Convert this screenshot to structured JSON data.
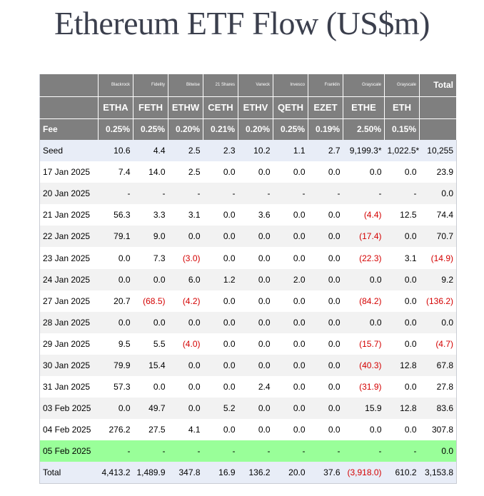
{
  "title": "Ethereum ETF Flow (US$m)",
  "issuers": [
    "Blackrock",
    "Fidelity",
    "Bitwise",
    "21 Shares",
    "Vaneck",
    "Invesco",
    "Franklin",
    "Grayscale",
    "Grayscale"
  ],
  "total_header": "Total",
  "tickers": [
    "ETHA",
    "FETH",
    "ETHW",
    "CETH",
    "ETHV",
    "QETH",
    "EZET",
    "ETHE",
    "ETH"
  ],
  "fee_label": "Fee",
  "fees": [
    "0.25%",
    "0.25%",
    "0.20%",
    "0.21%",
    "0.20%",
    "0.25%",
    "0.19%",
    "2.50%",
    "0.15%"
  ],
  "rows": [
    {
      "label": "Seed",
      "style": "seed",
      "cells": [
        "10.6",
        "4.4",
        "2.5",
        "2.3",
        "10.2",
        "1.1",
        "2.7",
        "9,199.3*",
        "1,022.5*",
        "10,255"
      ],
      "neg": []
    },
    {
      "label": "17 Jan 2025",
      "style": "plain",
      "cells": [
        "7.4",
        "14.0",
        "2.5",
        "0.0",
        "0.0",
        "0.0",
        "0.0",
        "0.0",
        "0.0",
        "23.9"
      ],
      "neg": []
    },
    {
      "label": "20 Jan 2025",
      "style": "alt",
      "cells": [
        "-",
        "-",
        "-",
        "-",
        "-",
        "-",
        "-",
        "-",
        "-",
        "0.0"
      ],
      "neg": []
    },
    {
      "label": "21 Jan 2025",
      "style": "plain",
      "cells": [
        "56.3",
        "3.3",
        "3.1",
        "0.0",
        "3.6",
        "0.0",
        "0.0",
        "(4.4)",
        "12.5",
        "74.4"
      ],
      "neg": [
        7
      ]
    },
    {
      "label": "22 Jan 2025",
      "style": "alt",
      "cells": [
        "79.1",
        "9.0",
        "0.0",
        "0.0",
        "0.0",
        "0.0",
        "0.0",
        "(17.4)",
        "0.0",
        "70.7"
      ],
      "neg": [
        7
      ]
    },
    {
      "label": "23 Jan 2025",
      "style": "plain",
      "cells": [
        "0.0",
        "7.3",
        "(3.0)",
        "0.0",
        "0.0",
        "0.0",
        "0.0",
        "(22.3)",
        "3.1",
        "(14.9)"
      ],
      "neg": [
        2,
        7,
        9
      ]
    },
    {
      "label": "24 Jan 2025",
      "style": "alt",
      "cells": [
        "0.0",
        "0.0",
        "6.0",
        "1.2",
        "0.0",
        "2.0",
        "0.0",
        "0.0",
        "0.0",
        "9.2"
      ],
      "neg": []
    },
    {
      "label": "27 Jan 2025",
      "style": "plain",
      "cells": [
        "20.7",
        "(68.5)",
        "(4.2)",
        "0.0",
        "0.0",
        "0.0",
        "0.0",
        "(84.2)",
        "0.0",
        "(136.2)"
      ],
      "neg": [
        1,
        2,
        7,
        9
      ]
    },
    {
      "label": "28 Jan 2025",
      "style": "alt",
      "cells": [
        "0.0",
        "0.0",
        "0.0",
        "0.0",
        "0.0",
        "0.0",
        "0.0",
        "0.0",
        "0.0",
        "0.0"
      ],
      "neg": []
    },
    {
      "label": "29 Jan 2025",
      "style": "plain",
      "cells": [
        "9.5",
        "5.5",
        "(4.0)",
        "0.0",
        "0.0",
        "0.0",
        "0.0",
        "(15.7)",
        "0.0",
        "(4.7)"
      ],
      "neg": [
        2,
        7,
        9
      ]
    },
    {
      "label": "30 Jan 2025",
      "style": "alt",
      "cells": [
        "79.9",
        "15.4",
        "0.0",
        "0.0",
        "0.0",
        "0.0",
        "0.0",
        "(40.3)",
        "12.8",
        "67.8"
      ],
      "neg": [
        7
      ]
    },
    {
      "label": "31 Jan 2025",
      "style": "plain",
      "cells": [
        "57.3",
        "0.0",
        "0.0",
        "0.0",
        "2.4",
        "0.0",
        "0.0",
        "(31.9)",
        "0.0",
        "27.8"
      ],
      "neg": [
        7
      ]
    },
    {
      "label": "03 Feb 2025",
      "style": "alt",
      "cells": [
        "0.0",
        "49.7",
        "0.0",
        "5.2",
        "0.0",
        "0.0",
        "0.0",
        "15.9",
        "12.8",
        "83.6"
      ],
      "neg": []
    },
    {
      "label": "04 Feb 2025",
      "style": "plain",
      "cells": [
        "276.2",
        "27.5",
        "4.1",
        "0.0",
        "0.0",
        "0.0",
        "0.0",
        "0.0",
        "0.0",
        "307.8"
      ],
      "neg": []
    },
    {
      "label": "05 Feb 2025",
      "style": "hl",
      "cells": [
        "-",
        "-",
        "-",
        "-",
        "-",
        "-",
        "-",
        "-",
        "-",
        "0.0"
      ],
      "neg": []
    },
    {
      "label": "Total",
      "style": "total",
      "cells": [
        "4,413.2",
        "1,489.9",
        "347.8",
        "16.9",
        "136.2",
        "20.0",
        "37.6",
        "(3,918.0)",
        "610.2",
        "3,153.8"
      ],
      "neg": [
        7
      ]
    }
  ],
  "colors": {
    "header_bg": "#7f7f7f",
    "negative": "#d40000",
    "highlight_row": "#99ff99",
    "seed_total_bg": "#e8edf7",
    "alt_row_bg": "#f2f2f2"
  }
}
